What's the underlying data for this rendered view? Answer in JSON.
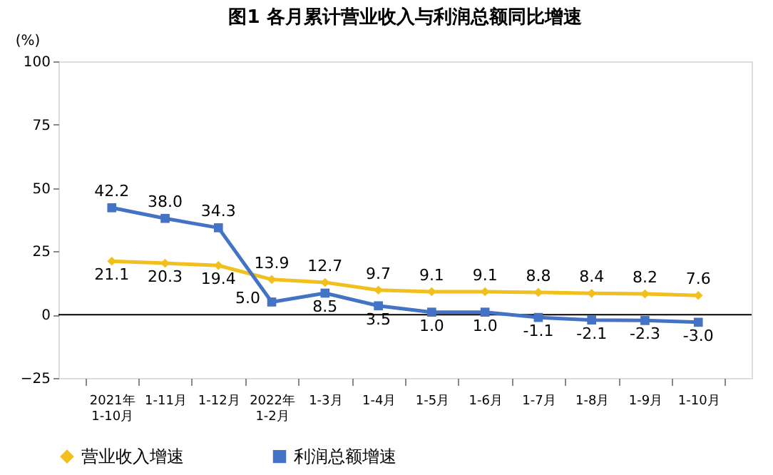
{
  "chart_data": {
    "type": "line",
    "title": "图1  各月累计营业收入与利润总额同比增速",
    "ylabel": "(%)",
    "categories": [
      "2021年\n1-10月",
      "1-11月",
      "1-12月",
      "2022年\n1-2月",
      "1-3月",
      "1-4月",
      "1-5月",
      "1-6月",
      "1-7月",
      "1-8月",
      "1-9月",
      "1-10月"
    ],
    "series": [
      {
        "name": "营业收入增速",
        "color": "#f2c01e",
        "marker": "diamond",
        "values": [
          21.1,
          20.3,
          19.4,
          13.9,
          12.7,
          9.7,
          9.1,
          9.1,
          8.8,
          8.4,
          8.2,
          7.6
        ],
        "value_labels": [
          "21.1",
          "20.3",
          "19.4",
          "13.9",
          "12.7",
          "9.7",
          "9.1",
          "9.1",
          "8.8",
          "8.4",
          "8.2",
          "7.6"
        ]
      },
      {
        "name": "利润总额增速",
        "color": "#4472c4",
        "marker": "square",
        "values": [
          42.2,
          38.0,
          34.3,
          5.0,
          8.5,
          3.5,
          1.0,
          1.0,
          -1.1,
          -2.1,
          -2.3,
          -3.0
        ],
        "value_labels": [
          "42.2",
          "38.0",
          "34.3",
          "5.0",
          "8.5",
          "3.5",
          "1.0",
          "1.0",
          "-1.1",
          "-2.1",
          "-2.3",
          "-3.0"
        ]
      }
    ],
    "ylim": [
      -25,
      100
    ],
    "yticks": [
      -25,
      0,
      25,
      50,
      75,
      100
    ],
    "ref_lines": [
      {
        "axis": "y",
        "value": 0
      }
    ],
    "grid": false,
    "legend": "bottom",
    "line_style": "solid"
  }
}
